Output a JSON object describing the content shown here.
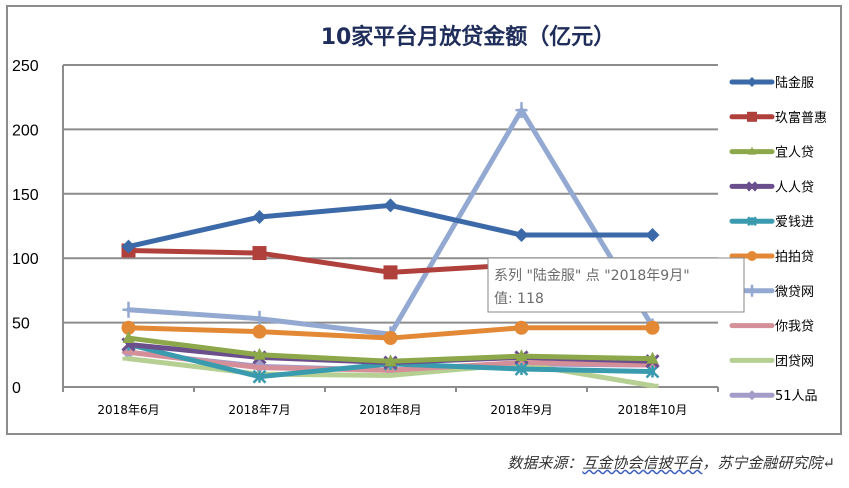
{
  "chart_data": {
    "type": "line",
    "title": "10家平台月放贷金额（亿元）",
    "xlabel": "",
    "ylabel": "",
    "categories": [
      "2018年6月",
      "2018年7月",
      "2018年8月",
      "2018年9月",
      "2018年10月"
    ],
    "ylim": [
      0,
      250
    ],
    "yticks": [
      0,
      50,
      100,
      150,
      200,
      250
    ],
    "grid": true,
    "legend_position": "right",
    "series": [
      {
        "name": "陆金服",
        "color": "#3c6aa8",
        "marker": "diamond",
        "values": [
          109,
          132,
          141,
          118,
          118
        ]
      },
      {
        "name": "玖富普惠",
        "color": "#b0403c",
        "marker": "square",
        "values": [
          106,
          104,
          89,
          95,
          81
        ]
      },
      {
        "name": "宜人贷",
        "color": "#8ca84a",
        "marker": "triangle",
        "values": [
          38,
          25,
          20,
          24,
          22
        ]
      },
      {
        "name": "人人贷",
        "color": "#6a4f8c",
        "marker": "x",
        "values": [
          33,
          23,
          19,
          23,
          20
        ]
      },
      {
        "name": "爱钱进",
        "color": "#3a9aae",
        "marker": "star",
        "values": [
          33,
          8,
          18,
          14,
          12
        ]
      },
      {
        "name": "拍拍贷",
        "color": "#e38936",
        "marker": "circle",
        "values": [
          46,
          43,
          38,
          46,
          46
        ]
      },
      {
        "name": "微贷网",
        "color": "#93a9d1",
        "marker": "plus",
        "values": [
          60,
          53,
          41,
          215,
          47
        ]
      },
      {
        "name": "你我贷",
        "color": "#d48f98",
        "marker": "dash",
        "values": [
          27,
          15,
          13,
          19,
          17
        ]
      },
      {
        "name": "团贷网",
        "color": "#b6cf93",
        "marker": "dash",
        "values": [
          22,
          10,
          9,
          18,
          1
        ]
      },
      {
        "name": "51人品",
        "color": "#a39cc9",
        "marker": "diamond",
        "values": [
          27,
          16,
          13,
          18,
          17
        ]
      }
    ]
  },
  "tooltip": {
    "line1": "系列 \"陆金服\" 点 \"2018年9月\"",
    "line2": "值: 118"
  },
  "source": {
    "prefix": "数据来源：",
    "link": "互金协会信披平台",
    "suffix": "，苏宁金融研究院↵"
  }
}
